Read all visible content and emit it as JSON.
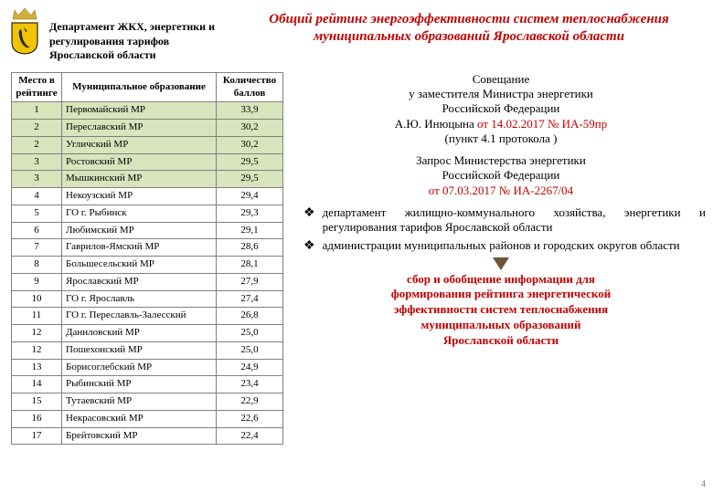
{
  "header": {
    "dept_line1": "Департамент ЖКХ, энергетики и",
    "dept_line2": "регулирования тарифов",
    "dept_line3": "Ярославской области",
    "title": "Общий рейтинг энергоэффективности систем теплоснабжения муниципальных образований Ярославской области"
  },
  "table": {
    "col_rank": "Место в рейтинге",
    "col_name": "Муниципальное образование",
    "col_score": "Количество баллов",
    "shaded_color": "#d8e4bc",
    "border_color": "#808080",
    "rows": [
      {
        "rank": "1",
        "name": "Первомайский МР",
        "score": "33,9",
        "shaded": true
      },
      {
        "rank": "2",
        "name": "Переславский МР",
        "score": "30,2",
        "shaded": true
      },
      {
        "rank": "2",
        "name": "Угличский МР",
        "score": "30,2",
        "shaded": true
      },
      {
        "rank": "3",
        "name": "Ростовский МР",
        "score": "29,5",
        "shaded": true
      },
      {
        "rank": "3",
        "name": "Мышкинский МР",
        "score": "29,5",
        "shaded": true
      },
      {
        "rank": "4",
        "name": "Некоузский МР",
        "score": "29,4",
        "shaded": false
      },
      {
        "rank": "5",
        "name": "ГО г. Рыбинск",
        "score": "29,3",
        "shaded": false
      },
      {
        "rank": "6",
        "name": "Любимский МР",
        "score": "29,1",
        "shaded": false
      },
      {
        "rank": "7",
        "name": "Гаврилов-Ямский МР",
        "score": "28,6",
        "shaded": false
      },
      {
        "rank": "8",
        "name": "Большесельский МР",
        "score": "28,1",
        "shaded": false
      },
      {
        "rank": "9",
        "name": "Ярославский МР",
        "score": "27,9",
        "shaded": false
      },
      {
        "rank": "10",
        "name": "ГО г. Ярославль",
        "score": "27,4",
        "shaded": false
      },
      {
        "rank": "11",
        "name": "ГО г. Переславль-Залесский",
        "score": "26,8",
        "shaded": false
      },
      {
        "rank": "12",
        "name": "Даниловский МР",
        "score": "25,0",
        "shaded": false
      },
      {
        "rank": "12",
        "name": "Пошехонский МР",
        "score": "25,0",
        "shaded": false
      },
      {
        "rank": "13",
        "name": "Борисоглебский МР",
        "score": "24,9",
        "shaded": false
      },
      {
        "rank": "14",
        "name": "Рыбинский МР",
        "score": "23,4",
        "shaded": false
      },
      {
        "rank": "15",
        "name": "Тутаевский МР",
        "score": "22,9",
        "shaded": false
      },
      {
        "rank": "16",
        "name": "Некрасовский МР",
        "score": "22,6",
        "shaded": false
      },
      {
        "rank": "17",
        "name": "Брейтовский МР",
        "score": "22,4",
        "shaded": false
      }
    ]
  },
  "right": {
    "meeting_l1": "Совещание",
    "meeting_l2": "у заместителя Министра энергетики",
    "meeting_l3": "Российской Федерации",
    "meeting_l4a": "А.Ю. Инюцына ",
    "meeting_l4b": "от 14.02.2017 № ИА-59пр",
    "meeting_l5": "(пункт 4.1 протокола )",
    "request_l1": "Запрос Министерства энергетики",
    "request_l2": "Российской Федерации",
    "request_l3": "от 07.03.2017 № ИА-2267/04",
    "bullet1": "департамент жилищно-коммунального хозяйства, энергетики и регулирования тарифов Ярославской области",
    "bullet2": "администрации муниципальных районов и городских округов области",
    "collect_l1": "сбор и обобщение информации для",
    "collect_l2": "формирования рейтинга энергетической",
    "collect_l3": "эффективности систем теплоснабжения",
    "collect_l4": "муниципальных образований",
    "collect_l5": "Ярославской области"
  },
  "colors": {
    "red": "#c00000",
    "arrow": "#6b5535",
    "bear": "#2b2b2b",
    "shield_fill": "#f2c400",
    "crown_fill": "#d4af37"
  },
  "pagenum": "4"
}
